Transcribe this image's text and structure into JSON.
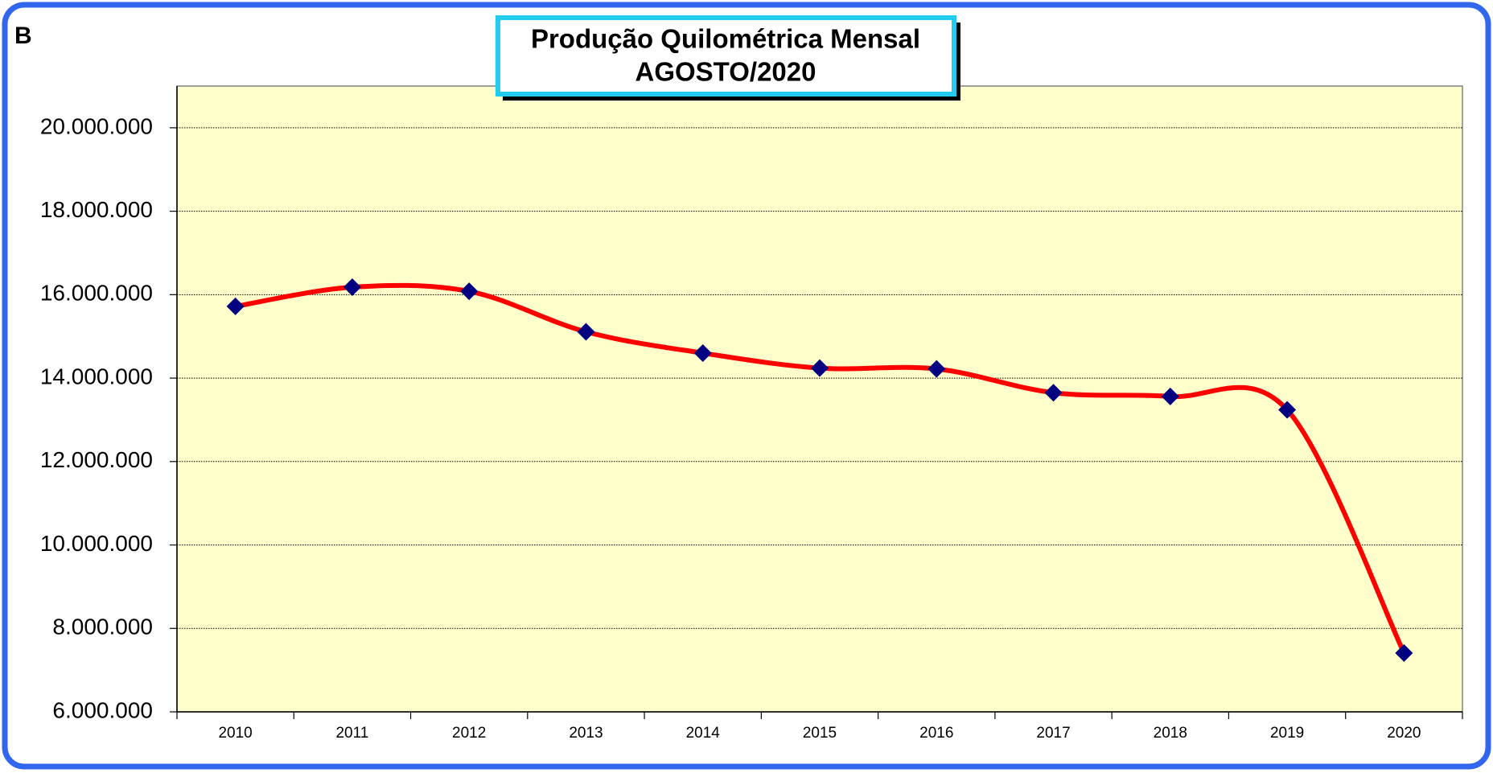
{
  "chart_data": {
    "type": "line",
    "panel_label": "B",
    "title": "Produção Quilométrica Mensal",
    "subtitle": "AGOSTO/2020",
    "categories": [
      "2010",
      "2011",
      "2012",
      "2013",
      "2014",
      "2015",
      "2016",
      "2017",
      "2018",
      "2019",
      "2020"
    ],
    "values": [
      15720000,
      16180000,
      16080000,
      15110000,
      14600000,
      14240000,
      14220000,
      13650000,
      13560000,
      13240000,
      7410000
    ],
    "color": "#ff0000",
    "marker_color": "#000080",
    "smooth": true,
    "ylim": [
      6000000,
      21000000
    ],
    "yticks": [
      {
        "value": 6000000,
        "label": "6.000.000"
      },
      {
        "value": 8000000,
        "label": "8.000.000"
      },
      {
        "value": 10000000,
        "label": "10.000.000"
      },
      {
        "value": 12000000,
        "label": "12.000.000"
      },
      {
        "value": 14000000,
        "label": "14.000.000"
      },
      {
        "value": 16000000,
        "label": "16.000.000"
      },
      {
        "value": 18000000,
        "label": "18.000.000"
      },
      {
        "value": 20000000,
        "label": "20.000.000"
      }
    ],
    "grid": true
  }
}
